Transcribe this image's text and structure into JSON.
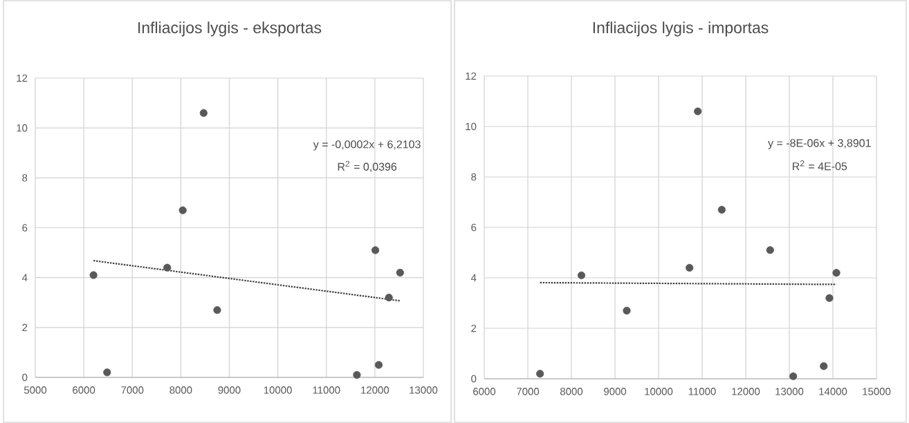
{
  "chart_data": [
    {
      "type": "scatter",
      "marker": "circle",
      "title": "Infliacijos lygis - eksportas",
      "xlim": [
        5000,
        13000
      ],
      "xticks": [
        5000,
        6000,
        7000,
        8000,
        9000,
        10000,
        11000,
        12000,
        13000
      ],
      "ylim": [
        0,
        12
      ],
      "yticks": [
        0,
        2,
        4,
        6,
        8,
        10,
        12
      ],
      "grid": true,
      "series": [
        {
          "type": "scatter",
          "color": "#595959",
          "x": [
            6200,
            6480,
            7720,
            8040,
            8470,
            8750,
            11630,
            12010,
            12080,
            12290,
            12520
          ],
          "values": [
            4.1,
            0.2,
            4.4,
            6.7,
            10.6,
            2.7,
            0.1,
            5.1,
            0.5,
            3.2,
            4.2
          ]
        },
        {
          "type": "line",
          "marker": "none",
          "line_style": "dotted",
          "color": "#404040",
          "x": [
            6200,
            12520
          ],
          "values": [
            4.68,
            3.07
          ]
        }
      ],
      "annotations": [
        "y = -0,0002x + 6,2103",
        "R$^{2}$ = 0,0396"
      ]
    },
    {
      "type": "scatter",
      "marker": "circle",
      "title": "Infliacijos lygis - importas",
      "xlim": [
        6000,
        15000
      ],
      "xticks": [
        6000,
        7000,
        8000,
        9000,
        10000,
        11000,
        12000,
        13000,
        14000,
        15000
      ],
      "ylim": [
        0,
        12
      ],
      "yticks": [
        0,
        2,
        4,
        6,
        8,
        10,
        12
      ],
      "grid": true,
      "series": [
        {
          "type": "scatter",
          "color": "#595959",
          "x": [
            7280,
            8230,
            9270,
            10710,
            10900,
            11450,
            12560,
            13090,
            13790,
            13920,
            14080
          ],
          "values": [
            0.2,
            4.1,
            2.7,
            4.4,
            10.6,
            6.7,
            5.1,
            0.1,
            0.5,
            3.2,
            4.2
          ]
        },
        {
          "type": "line",
          "marker": "none",
          "line_style": "dotted",
          "color": "#404040",
          "x": [
            7280,
            14080
          ],
          "values": [
            3.81,
            3.74
          ]
        }
      ],
      "annotations": [
        "y = -8E-06x + 3,8901",
        "R$^{2}$ = 4E-05"
      ]
    }
  ]
}
